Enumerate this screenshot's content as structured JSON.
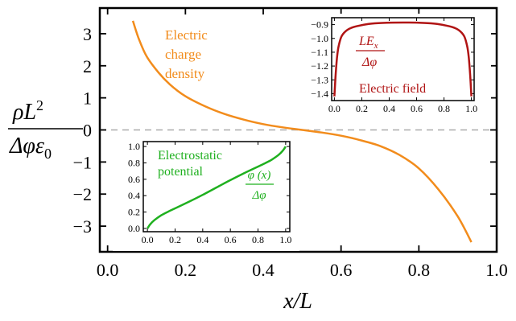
{
  "chart_data": [
    {
      "type": "line",
      "name": "main-plot",
      "xlabel": "x/L",
      "ylabel_parts": {
        "num_rho": "ρL",
        "num_sup": "2",
        "den_phi": "Δφε",
        "den_sub": "0"
      },
      "xlim": [
        -0.02,
        1.0
      ],
      "ylim": [
        -3.8,
        3.8
      ],
      "xticks": [
        "0.0",
        "0.2",
        "0.4",
        "0.6",
        "0.8",
        "1.0"
      ],
      "xtick_values": [
        0.0,
        0.2,
        0.4,
        0.6,
        0.8,
        1.0
      ],
      "yticks": [
        "3",
        "2",
        "1",
        "0",
        "−1",
        "−2",
        "−3"
      ],
      "ytick_values": [
        3,
        2,
        1,
        0,
        -1,
        -2,
        -3
      ],
      "zero_line": "dashed gray",
      "series": [
        {
          "name": "Electric charge density",
          "color": "#f28c1c",
          "x": [
            0.065,
            0.08,
            0.1,
            0.13,
            0.16,
            0.2,
            0.25,
            0.3,
            0.35,
            0.4,
            0.45,
            0.5,
            0.55,
            0.6,
            0.65,
            0.7,
            0.75,
            0.8,
            0.85,
            0.9,
            0.935
          ],
          "y": [
            3.4,
            2.85,
            2.3,
            1.8,
            1.42,
            1.05,
            0.74,
            0.5,
            0.32,
            0.18,
            0.08,
            0.0,
            -0.08,
            -0.18,
            -0.32,
            -0.5,
            -0.78,
            -1.2,
            -1.85,
            -2.7,
            -3.5
          ]
        }
      ],
      "annotation": [
        "Electric",
        "charge",
        "density"
      ]
    },
    {
      "type": "line",
      "name": "inset-electric-field",
      "xlim": [
        -0.02,
        1.02
      ],
      "ylim": [
        -1.45,
        -0.85
      ],
      "xticks": [
        "0.0",
        "0.2",
        "0.4",
        "0.6",
        "0.8",
        "1.0"
      ],
      "xtick_values": [
        0.0,
        0.2,
        0.4,
        0.6,
        0.8,
        1.0
      ],
      "yticks": [
        "−0.9",
        "−1.0",
        "−1.1",
        "−1.2",
        "−1.3",
        "−1.4"
      ],
      "ytick_values": [
        -0.9,
        -1.0,
        -1.1,
        -1.2,
        -1.3,
        -1.4
      ],
      "series": [
        {
          "name": "Electric field",
          "color": "#b01414",
          "x": [
            0.0,
            0.01,
            0.02,
            0.03,
            0.05,
            0.08,
            0.12,
            0.17,
            0.25,
            0.35,
            0.5,
            0.65,
            0.75,
            0.83,
            0.88,
            0.92,
            0.95,
            0.97,
            0.98,
            0.99,
            1.0
          ],
          "y": [
            -1.42,
            -1.25,
            -1.13,
            -1.06,
            -0.99,
            -0.95,
            -0.925,
            -0.91,
            -0.895,
            -0.888,
            -0.885,
            -0.888,
            -0.895,
            -0.91,
            -0.925,
            -0.95,
            -0.99,
            -1.06,
            -1.13,
            -1.25,
            -1.42
          ]
        }
      ],
      "fraction": {
        "num": "LE",
        "num_sub": "x",
        "den": "Δφ"
      },
      "label": "Electric field"
    },
    {
      "type": "line",
      "name": "inset-electrostatic-potential",
      "xlim": [
        -0.03,
        1.03
      ],
      "ylim": [
        -0.04,
        1.06
      ],
      "xticks": [
        "0.0",
        "0.2",
        "0.4",
        "0.6",
        "0.8",
        "1.0"
      ],
      "xtick_values": [
        0.0,
        0.2,
        0.4,
        0.6,
        0.8,
        1.0
      ],
      "yticks": [
        "1.0",
        "0.8",
        "0.6",
        "0.4",
        "0.2",
        "0.0"
      ],
      "ytick_values": [
        1.0,
        0.8,
        0.6,
        0.4,
        0.2,
        0.0
      ],
      "series": [
        {
          "name": "Electrostatic potential",
          "color": "#1fb01f",
          "x": [
            0.0,
            0.02,
            0.05,
            0.1,
            0.15,
            0.2,
            0.3,
            0.4,
            0.5,
            0.6,
            0.7,
            0.8,
            0.85,
            0.9,
            0.95,
            0.98,
            1.0
          ],
          "y": [
            0.0,
            0.05,
            0.1,
            0.16,
            0.205,
            0.245,
            0.325,
            0.41,
            0.5,
            0.59,
            0.675,
            0.755,
            0.795,
            0.84,
            0.9,
            0.95,
            1.0
          ]
        }
      ],
      "fraction": {
        "num": "φ (x)",
        "den": "Δφ"
      },
      "label": [
        "Electrostatic",
        "potential"
      ]
    }
  ]
}
